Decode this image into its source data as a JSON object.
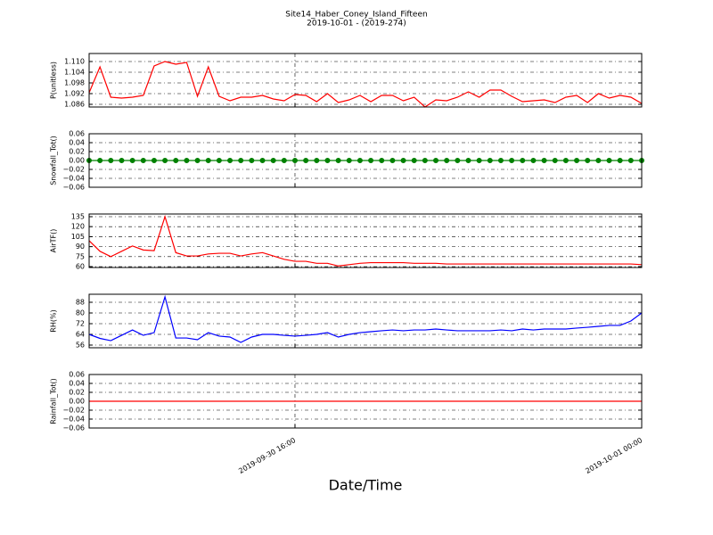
{
  "title": "Site14_Haber_Coney_Island_Fifteen",
  "subtitle": "2019-10-01 - (2019-274)",
  "xlabel": "Date/Time",
  "x": [
    "2019-09-30 11:15",
    "2019-09-30 11:30",
    "2019-09-30 11:45",
    "2019-09-30 12:00",
    "2019-09-30 12:15",
    "2019-09-30 12:30",
    "2019-09-30 12:45",
    "2019-09-30 13:00",
    "2019-09-30 13:15",
    "2019-09-30 13:30",
    "2019-09-30 13:45",
    "2019-09-30 14:00",
    "2019-09-30 14:15",
    "2019-09-30 14:30",
    "2019-09-30 14:45",
    "2019-09-30 15:00",
    "2019-09-30 15:15",
    "2019-09-30 15:30",
    "2019-09-30 15:45",
    "2019-09-30 16:00",
    "2019-09-30 16:15",
    "2019-09-30 16:30",
    "2019-09-30 16:45",
    "2019-09-30 17:00",
    "2019-09-30 17:15",
    "2019-09-30 17:30",
    "2019-09-30 17:45",
    "2019-09-30 18:00",
    "2019-09-30 18:15",
    "2019-09-30 18:30",
    "2019-09-30 18:45",
    "2019-09-30 19:00",
    "2019-09-30 19:15",
    "2019-09-30 19:30",
    "2019-09-30 19:45",
    "2019-09-30 20:00",
    "2019-09-30 20:15",
    "2019-09-30 20:30",
    "2019-09-30 20:45",
    "2019-09-30 21:00",
    "2019-09-30 21:15",
    "2019-09-30 21:30",
    "2019-09-30 21:45",
    "2019-09-30 22:00",
    "2019-09-30 22:15",
    "2019-09-30 22:30",
    "2019-09-30 22:45",
    "2019-09-30 23:00",
    "2019-09-30 23:15",
    "2019-09-30 23:30",
    "2019-09-30 23:45",
    "2019-10-01 00:00"
  ],
  "xlim": [
    "2019-09-30 11:15",
    "2019-10-01 00:00"
  ],
  "xticks": [
    "2019-09-30 16:00",
    "2019-10-01 00:00"
  ],
  "grid": true,
  "chart_data": [
    {
      "type": "line",
      "ylabel": "P(unitless)",
      "ylim": [
        1.0845,
        1.1145
      ],
      "yticks": [
        {
          "value": 1.086,
          "label": "1.086"
        },
        {
          "value": 1.092,
          "label": "1.092"
        },
        {
          "value": 1.098,
          "label": "1.098"
        },
        {
          "value": 1.104,
          "label": "1.104"
        },
        {
          "value": 1.11,
          "label": "1.110"
        }
      ],
      "series": [
        {
          "color": "#ff0000",
          "marker": false,
          "values": [
            1.0925,
            1.107,
            1.09,
            1.0895,
            1.09,
            1.091,
            1.1075,
            1.11,
            1.1085,
            1.1095,
            1.0905,
            1.107,
            1.0905,
            1.088,
            1.09,
            1.09,
            1.091,
            1.089,
            1.088,
            1.0915,
            1.091,
            1.0875,
            1.092,
            1.087,
            1.0885,
            1.091,
            1.0875,
            1.091,
            1.091,
            1.088,
            1.09,
            1.0845,
            1.0885,
            1.088,
            1.09,
            1.093,
            1.09,
            1.094,
            1.094,
            1.0905,
            1.0875,
            1.088,
            1.0885,
            1.087,
            1.09,
            1.091,
            1.087,
            1.092,
            1.0895,
            1.091,
            1.09,
            1.0865
          ]
        }
      ]
    },
    {
      "type": "line",
      "ylabel": "Snowfall_Tot()",
      "ylim": [
        -0.06,
        0.06
      ],
      "yticks": [
        {
          "value": -0.06,
          "label": "−0.06"
        },
        {
          "value": -0.04,
          "label": "−0.04"
        },
        {
          "value": -0.02,
          "label": "−0.02"
        },
        {
          "value": 0,
          "label": "0.00"
        },
        0.02,
        0.04,
        0.06
      ],
      "series": [
        {
          "color": "#008000",
          "marker": true,
          "values": [
            0,
            0,
            0,
            0,
            0,
            0,
            0,
            0,
            0,
            0,
            0,
            0,
            0,
            0,
            0,
            0,
            0,
            0,
            0,
            0,
            0,
            0,
            0,
            0,
            0,
            0,
            0,
            0,
            0,
            0,
            0,
            0,
            0,
            0,
            0,
            0,
            0,
            0,
            0,
            0,
            0,
            0,
            0,
            0,
            0,
            0,
            0,
            0,
            0,
            0,
            0,
            0
          ]
        }
      ]
    },
    {
      "type": "line",
      "ylabel": "AirTF()",
      "ylim": [
        58.7,
        139
      ],
      "yticks": [
        60,
        75,
        90,
        105,
        120,
        135
      ],
      "series": [
        {
          "color": "#ff0000",
          "marker": false,
          "values": [
            99,
            83,
            75,
            83,
            91,
            85,
            84,
            135,
            81,
            76,
            76,
            79,
            80,
            80,
            76,
            79,
            81,
            76,
            71,
            68,
            68,
            65,
            65,
            61,
            63,
            65,
            66,
            66,
            66,
            66,
            65,
            65,
            65,
            64,
            64,
            64,
            64,
            64,
            64,
            64,
            64,
            64,
            64,
            64,
            64,
            64,
            64,
            64,
            64,
            64,
            64,
            63
          ]
        }
      ]
    },
    {
      "type": "line",
      "ylabel": "RH(%)",
      "ylim": [
        54,
        94
      ],
      "yticks": [
        56,
        64,
        72,
        80,
        88
      ],
      "series": [
        {
          "color": "#0000ff",
          "marker": false,
          "values": [
            64,
            61,
            59.3,
            63.3,
            67.3,
            63.3,
            65.3,
            92,
            61.3,
            61.3,
            60,
            65.3,
            62.7,
            62,
            58,
            62,
            64,
            64,
            63.3,
            62.7,
            63.3,
            64,
            65.3,
            62,
            64,
            65.3,
            66,
            66.7,
            67.3,
            66.7,
            67.3,
            67.3,
            68,
            67.3,
            66.7,
            66.7,
            66.7,
            66.7,
            67.3,
            66.7,
            68,
            67.3,
            68,
            68,
            68,
            68.7,
            69.3,
            70,
            70.7,
            70.7,
            74,
            80
          ]
        }
      ]
    },
    {
      "type": "line",
      "ylabel": "Rainfall_Tot()",
      "ylim": [
        -0.06,
        0.06
      ],
      "yticks": [
        {
          "value": -0.06,
          "label": "−0.06"
        },
        {
          "value": -0.04,
          "label": "−0.04"
        },
        {
          "value": -0.02,
          "label": "−0.02"
        },
        {
          "value": 0,
          "label": "0.00"
        },
        0.02,
        0.04,
        0.06
      ],
      "series": [
        {
          "color": "#ff0000",
          "marker": false,
          "values": [
            0,
            0,
            0,
            0,
            0,
            0,
            0,
            0,
            0,
            0,
            0,
            0,
            0,
            0,
            0,
            0,
            0,
            0,
            0,
            0,
            0,
            0,
            0,
            0,
            0,
            0,
            0,
            0,
            0,
            0,
            0,
            0,
            0,
            0,
            0,
            0,
            0,
            0,
            0,
            0,
            0,
            0,
            0,
            0,
            0,
            0,
            0,
            0,
            0,
            0,
            0,
            0
          ]
        }
      ]
    }
  ]
}
